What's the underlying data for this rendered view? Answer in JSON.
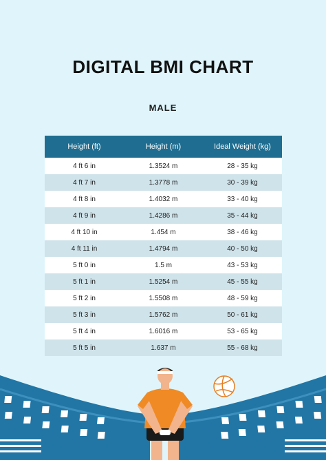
{
  "title": "DIGITAL BMI CHART",
  "subtitle": "MALE",
  "table": {
    "headers": [
      "Height (ft)",
      "Height (m)",
      "Ideal Weight (kg)"
    ],
    "rows": [
      [
        "4 ft 6 in",
        "1.3524 m",
        "28 - 35 kg"
      ],
      [
        "4 ft 7 in",
        "1.3778 m",
        "30 - 39 kg"
      ],
      [
        "4 ft 8 in",
        "1.4032 m",
        "33 - 40 kg"
      ],
      [
        "4 ft 9 in",
        "1.4286 m",
        "35 - 44 kg"
      ],
      [
        "4 ft 10 in",
        "1.454 m",
        "38 - 46 kg"
      ],
      [
        "4 ft 11 in",
        "1.4794 m",
        "40 - 50 kg"
      ],
      [
        "5 ft 0 in",
        "1.5 m",
        "43 - 53 kg"
      ],
      [
        "5 ft 1 in",
        "1.5254 m",
        "45 - 55 kg"
      ],
      [
        "5 ft 2 in",
        "1.5508 m",
        "48 - 59 kg"
      ],
      [
        "5 ft 3 in",
        "1.5762 m",
        "50 - 61 kg"
      ],
      [
        "5 ft 4 in",
        "1.6016 m",
        "53 - 65 kg"
      ],
      [
        "5 ft 5 in",
        "1.637 m",
        "55 - 68 kg"
      ]
    ]
  },
  "colors": {
    "background": "#dff5fb",
    "header": "#1f6e91",
    "row_alt": "#cfe3ea",
    "stadium": "#2176a5",
    "jersey": "#f08a24"
  },
  "illustration": {
    "icons": [
      "volleyball-player-illustration",
      "volleyball-icon",
      "stadium-stands-illustration"
    ]
  }
}
